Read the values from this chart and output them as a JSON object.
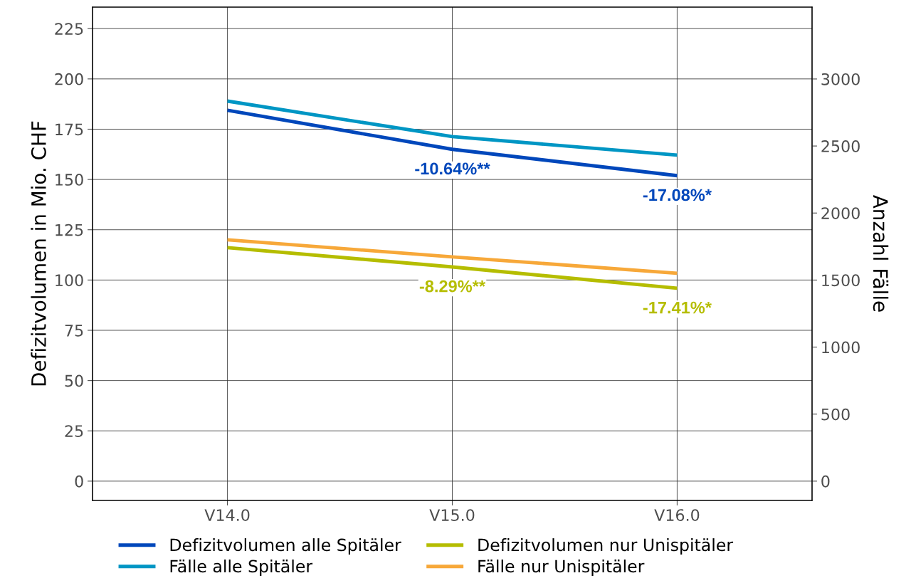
{
  "chart_data": {
    "type": "line",
    "ylabel": "Defizitvolumen in Mio. CHF",
    "y2label": "Anzahl Fälle",
    "categories": [
      "V14.0",
      "V15.0",
      "V16.0"
    ],
    "series": [
      {
        "name": "Defizitvolumen alle Spitäler",
        "color": "#0047bb",
        "values": [
          184.4,
          165.0,
          151.9
        ]
      },
      {
        "name": "Fälle alle Spitäler",
        "color": "#0096c4",
        "axis": "y2",
        "values": [
          2835,
          2570,
          2432
        ]
      },
      {
        "name": "Defizitvolumen nur Unispitäler",
        "color": "#b5bd00",
        "values": [
          116.1,
          106.5,
          95.9
        ]
      },
      {
        "name": "Fälle nur Unispitäler",
        "color": "#f7a839",
        "axis": "y2",
        "values": [
          1800,
          1673,
          1551
        ]
      }
    ],
    "ylim": [
      -9.6,
      235.7
    ],
    "yticks": [
      0,
      25,
      50,
      75,
      100,
      125,
      150,
      175,
      200,
      225
    ],
    "y2lim": [
      -144,
      3536
    ],
    "y2ticks": [
      0,
      500,
      1000,
      1500,
      2000,
      2500,
      3000
    ],
    "annotations": [
      {
        "text": "-10.64%**",
        "x": "V15.0",
        "y": 165.0
      },
      {
        "text": "-17.08%*",
        "x": "V16.0",
        "y": 151.9
      },
      {
        "text": "-8.29%**",
        "x": "V15.0",
        "y": 106.5
      },
      {
        "text": "-17.41%*",
        "x": "V16.0",
        "y": 95.9
      }
    ],
    "grid": true,
    "legend": "bottom",
    "line_style": "solid",
    "marker": "none"
  }
}
